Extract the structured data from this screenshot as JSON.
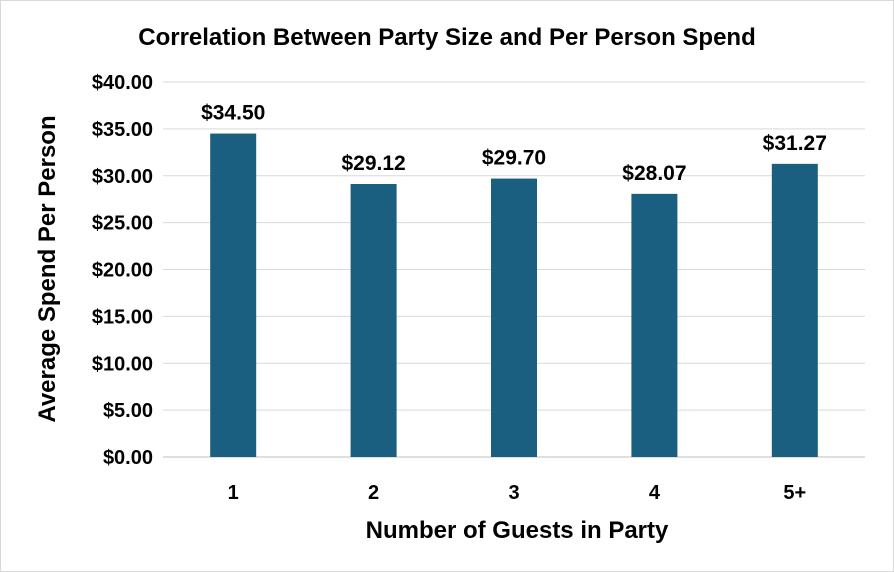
{
  "chart_data": {
    "type": "bar",
    "title": "Correlation Between Party Size and Per Person Spend",
    "xlabel": "Number of Guests in Party",
    "ylabel": "Average Spend Per Person",
    "categories": [
      "1",
      "2",
      "3",
      "4",
      "5+"
    ],
    "values": [
      34.5,
      29.12,
      29.7,
      28.07,
      31.27
    ],
    "data_labels": [
      "$34.50",
      "$29.12",
      "$29.70",
      "$28.07",
      "$31.27"
    ],
    "ylim": [
      0,
      40
    ],
    "yticks": [
      0,
      5,
      10,
      15,
      20,
      25,
      30,
      35,
      40
    ],
    "ytick_labels": [
      "$0.00",
      "$5.00",
      "$10.00",
      "$15.00",
      "$20.00",
      "$25.00",
      "$30.00",
      "$35.00",
      "$40.00"
    ],
    "grid": true,
    "legend": "none",
    "colors": {
      "bar": "#1a5f80",
      "grid": "#d9d9d9",
      "text": "#000000"
    }
  }
}
